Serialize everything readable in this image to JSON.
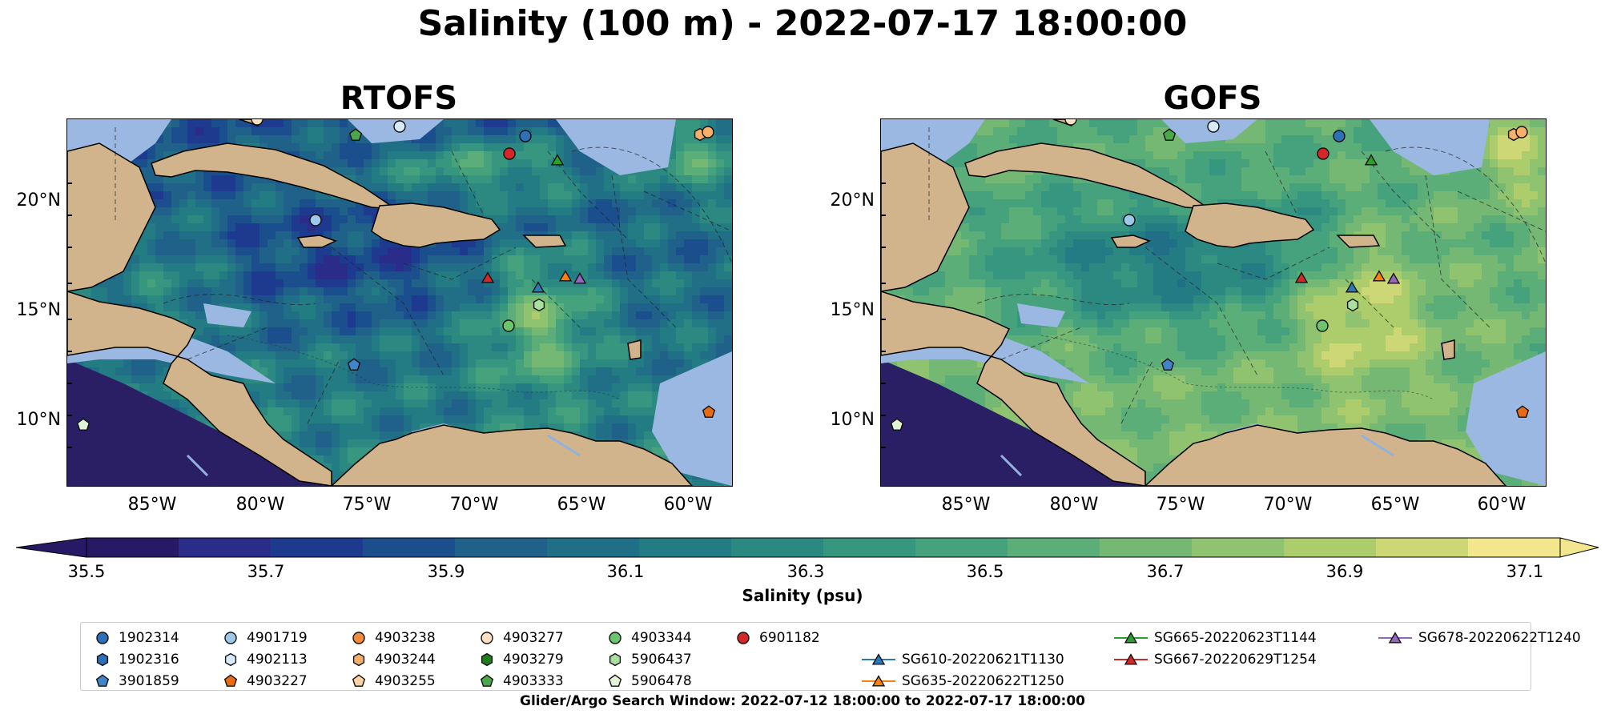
{
  "figure_title": "Salinity (100 m) - 2022-07-17 18:00:00",
  "panels": [
    {
      "title": "RTOFS",
      "scheme": "rtofs"
    },
    {
      "title": "GOFS",
      "scheme": "gofs"
    }
  ],
  "lat_labels": [
    "20°N",
    "15°N",
    "10°N"
  ],
  "lon_labels": [
    "85°W",
    "80°W",
    "75°W",
    "70°W",
    "65°W",
    "60°W"
  ],
  "colorbar": {
    "label": "Salinity (psu)",
    "ticks": [
      "35.5",
      "35.7",
      "35.9",
      "36.1",
      "36.3",
      "36.5",
      "36.7",
      "36.9",
      "37.1"
    ],
    "min": 35.5,
    "max": 37.1,
    "levels": 16,
    "extend": "both",
    "colors": [
      "#271963",
      "#2b2b8a",
      "#1d3a8e",
      "#1b4e8c",
      "#1f6189",
      "#216f86",
      "#237c84",
      "#2b8982",
      "#369680",
      "#46a27d",
      "#5cae79",
      "#74b874",
      "#8fc36f",
      "#adcc6c",
      "#cdd776",
      "#f4e68c"
    ]
  },
  "map_colors": {
    "land": "#d2b48c",
    "shallow": "#9ab8e2",
    "deep_pacific": "#2a1e64",
    "rivers": "#8fb2df"
  },
  "legend": {
    "items": [
      {
        "label": "1902314",
        "marker": "circle",
        "color": "#2f6fb6"
      },
      {
        "label": "1902316",
        "marker": "hexagon",
        "color": "#2f6fb6"
      },
      {
        "label": "3901859",
        "marker": "pentagon",
        "color": "#3f85c8"
      },
      {
        "label": "4901719",
        "marker": "circle",
        "color": "#9cc8ea"
      },
      {
        "label": "4902113",
        "marker": "hexagon",
        "color": "#d6ebf7"
      },
      {
        "label": "4903227",
        "marker": "pentagon",
        "color": "#e86a12"
      },
      {
        "label": "4903238",
        "marker": "circle",
        "color": "#f28b3a"
      },
      {
        "label": "4903244",
        "marker": "hexagon",
        "color": "#f6b06b"
      },
      {
        "label": "4903255",
        "marker": "pentagon",
        "color": "#fbd3a4"
      },
      {
        "label": "4903277",
        "marker": "circle",
        "color": "#fde0c0"
      },
      {
        "label": "4903279",
        "marker": "hexagon",
        "color": "#1e7e1e"
      },
      {
        "label": "4903333",
        "marker": "pentagon",
        "color": "#4aa84a"
      },
      {
        "label": "4903344",
        "marker": "circle",
        "color": "#6cc46c"
      },
      {
        "label": "5906437",
        "marker": "hexagon",
        "color": "#a8e0a0"
      },
      {
        "label": "5906478",
        "marker": "pentagon",
        "color": "#dff5d6"
      },
      {
        "label": "6901182",
        "marker": "circle",
        "color": "#d62728"
      },
      {
        "label": "SG610-20220621T1130",
        "marker": "triangle",
        "color": "#2a7ab8"
      },
      {
        "label": "SG635-20220622T1250",
        "marker": "triangle",
        "color": "#ff7f0e"
      },
      {
        "label": "SG665-20220623T1144",
        "marker": "triangle",
        "color": "#2ca02c"
      },
      {
        "label": "SG667-20220629T1254",
        "marker": "triangle",
        "color": "#d62728"
      },
      {
        "label": "SG678-20220622T1240",
        "marker": "triangle",
        "color": "#9467bd"
      }
    ]
  },
  "search_window": "Glider/Argo Search Window: 2022-07-12 18:00:00 to 2022-07-17 18:00:00"
}
